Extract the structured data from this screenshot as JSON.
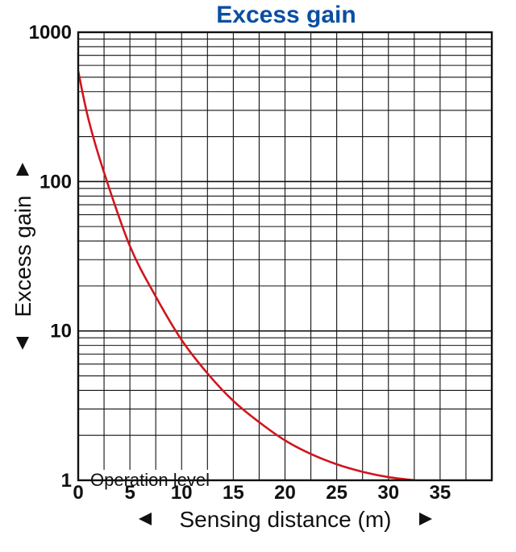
{
  "chart_data": {
    "type": "line",
    "title": "Excess gain",
    "xlabel": "Sensing distance (m)",
    "ylabel": "Excess gain",
    "yscale": "log",
    "xlim": [
      0,
      40
    ],
    "ylim": [
      1,
      1000
    ],
    "x_ticks": [
      0,
      5,
      10,
      15,
      20,
      25,
      30,
      35
    ],
    "y_ticks": [
      1,
      10,
      100,
      1000
    ],
    "grid": true,
    "series": [
      {
        "color": "#d0161e",
        "x": [
          0,
          1,
          2.5,
          5,
          7.5,
          10,
          12.5,
          15,
          17.5,
          20,
          22.5,
          25,
          27.5,
          30,
          32.5
        ],
        "values": [
          550,
          260,
          115,
          37,
          17,
          8.7,
          5.2,
          3.4,
          2.45,
          1.85,
          1.5,
          1.28,
          1.14,
          1.05,
          1.0
        ]
      }
    ],
    "annotations": [
      {
        "text": "Operation level",
        "y": 1
      }
    ]
  }
}
